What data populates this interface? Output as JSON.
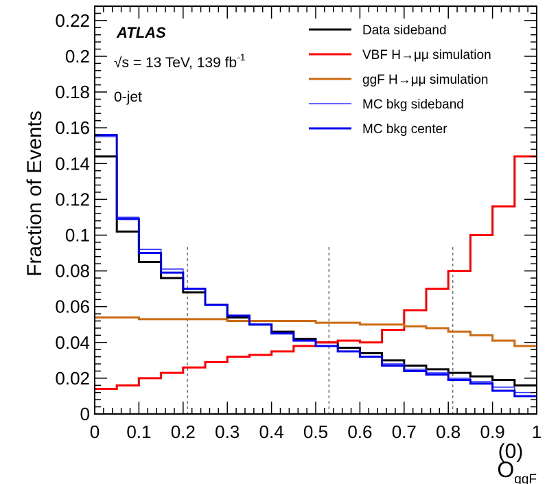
{
  "chart_data": {
    "type": "line",
    "xlabel": "O",
    "xlabel_sup": "(0)",
    "xlabel_sub": "ggF",
    "ylabel": "Fraction of Events",
    "xlim": [
      0,
      1
    ],
    "ylim": [
      0,
      0.228
    ],
    "grid": false,
    "x_ticks": [
      "0",
      "0.1",
      "0.2",
      "0.3",
      "0.4",
      "0.5",
      "0.6",
      "0.7",
      "0.8",
      "0.9",
      "1"
    ],
    "y_ticks": [
      "0",
      "0.02",
      "0.04",
      "0.06",
      "0.08",
      "0.1",
      "0.12",
      "0.14",
      "0.16",
      "0.18",
      "0.2",
      "0.22"
    ],
    "bin_edges": [
      0,
      0.05,
      0.1,
      0.15,
      0.2,
      0.25,
      0.3,
      0.35,
      0.4,
      0.45,
      0.5,
      0.55,
      0.6,
      0.65,
      0.7,
      0.75,
      0.8,
      0.85,
      0.9,
      0.95,
      1.0
    ],
    "category_boundaries": [
      0.21,
      0.53,
      0.81
    ],
    "annotations": {
      "experiment": "ATLAS",
      "energy_sqrt": "√s",
      "energy_rest": " = 13 TeV, 139 fb",
      "energy_sup": "-1",
      "category": "0-jet"
    },
    "legend_position": "top-right",
    "series": [
      {
        "name": "Data sideband",
        "color": "#000000",
        "stroke_width": 3,
        "values": [
          0.144,
          0.102,
          0.085,
          0.076,
          0.068,
          0.061,
          0.054,
          0.05,
          0.046,
          0.042,
          0.04,
          0.037,
          0.034,
          0.03,
          0.027,
          0.025,
          0.023,
          0.021,
          0.019,
          0.016
        ]
      },
      {
        "name": "VBF H→μμ simulation",
        "color": "#ff0000",
        "stroke_width": 3,
        "values": [
          0.014,
          0.016,
          0.02,
          0.023,
          0.026,
          0.029,
          0.032,
          0.033,
          0.035,
          0.038,
          0.04,
          0.041,
          0.04,
          0.047,
          0.058,
          0.07,
          0.08,
          0.1,
          0.116,
          0.144
        ]
      },
      {
        "name": "ggF H→μμ simulation",
        "color": "#cc6a10",
        "stroke_width": 3,
        "values": [
          0.054,
          0.054,
          0.053,
          0.053,
          0.053,
          0.053,
          0.052,
          0.052,
          0.052,
          0.052,
          0.051,
          0.051,
          0.05,
          0.05,
          0.049,
          0.048,
          0.046,
          0.044,
          0.041,
          0.038
        ]
      },
      {
        "name": "MC bkg sideband",
        "color": "#3333ff",
        "stroke_width": 1.6,
        "values": [
          0.155,
          0.11,
          0.092,
          0.081,
          0.07,
          0.061,
          0.055,
          0.05,
          0.045,
          0.041,
          0.038,
          0.035,
          0.032,
          0.028,
          0.025,
          0.023,
          0.02,
          0.018,
          0.015,
          0.012
        ]
      },
      {
        "name": "MC bkg center",
        "color": "#0000ee",
        "stroke_width": 3,
        "values": [
          0.156,
          0.109,
          0.09,
          0.079,
          0.07,
          0.061,
          0.055,
          0.05,
          0.045,
          0.041,
          0.038,
          0.035,
          0.032,
          0.027,
          0.024,
          0.022,
          0.019,
          0.017,
          0.013,
          0.01
        ]
      }
    ]
  }
}
